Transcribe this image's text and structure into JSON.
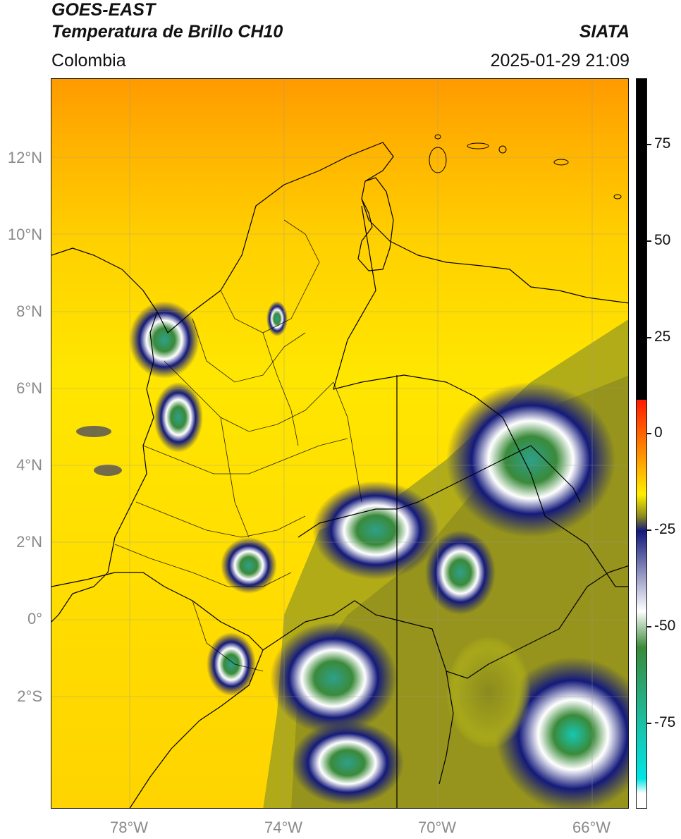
{
  "header": {
    "product": "GOES-EAST",
    "variable": "Temperatura de Brillo CH10",
    "region": "Colombia",
    "agency": "SIATA",
    "timestamp": "2025-01-29 21:09"
  },
  "map": {
    "lat_labels": [
      "12°N",
      "10°N",
      "8°N",
      "6°N",
      "4°N",
      "2°N",
      "0°",
      "2°S"
    ],
    "lon_labels": [
      "78°W",
      "74°W",
      "70°W",
      "66°W"
    ],
    "extent": {
      "lon_min": -80,
      "lon_max": -65,
      "lat_min": -4.9,
      "lat_max": 14
    }
  },
  "colorbar": {
    "ticks": [
      "75",
      "50",
      "25",
      "0",
      "-25",
      "-50",
      "-75"
    ],
    "colors": {
      "black": "#000000",
      "red": "#ff1a00",
      "orange": "#ff9900",
      "yellow": "#ffee00",
      "olive": "#8a8a1e",
      "navy": "#141a7a",
      "white": "#ffffff",
      "green": "#3a8a3a",
      "teal": "#16c8b4",
      "cyan": "#00e5e5"
    }
  }
}
